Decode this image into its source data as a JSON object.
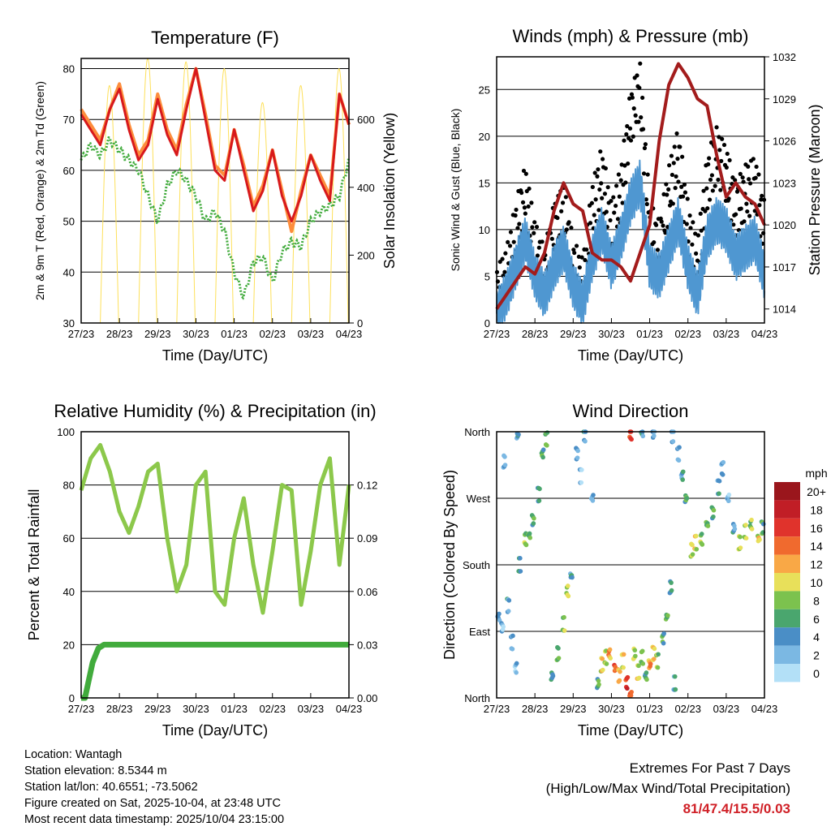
{
  "chart_data": [
    {
      "type": "line",
      "title": "Temperature (F)",
      "xlabel": "Time (Day/UTC)",
      "ylabel": "2m & 9m T (Red, Orange) & 2m Td (Green)",
      "ylabel_right": "Solar Insolation (Yellow)",
      "xticks": [
        "27/23",
        "28/23",
        "29/23",
        "30/23",
        "01/23",
        "02/23",
        "03/23",
        "04/23"
      ],
      "xlim": [
        0,
        7
      ],
      "ylim": [
        30,
        82
      ],
      "yticks": [
        30,
        40,
        50,
        60,
        70,
        80
      ],
      "ylim_right": [
        0,
        780
      ],
      "yticks_right": [
        0,
        200,
        400,
        600
      ],
      "series": [
        {
          "name": "2m T",
          "color": "#d7191c",
          "values": [
            71,
            68,
            65,
            72,
            76,
            68,
            62,
            65,
            74,
            67,
            63,
            72,
            80,
            70,
            60,
            58,
            68,
            60,
            52,
            56,
            64,
            55,
            50,
            55,
            63,
            58,
            54,
            75,
            69
          ]
        },
        {
          "name": "9m T",
          "color": "#fd8d3c",
          "values": [
            72,
            69,
            66,
            72,
            77,
            69,
            63,
            66,
            75,
            68,
            64,
            73,
            80,
            71,
            61,
            59,
            68,
            61,
            53,
            57,
            64,
            56,
            48,
            56,
            63,
            59,
            55,
            75,
            69
          ]
        },
        {
          "name": "2m Td",
          "color": "#41ab3c",
          "values": [
            62,
            65,
            63,
            66,
            64,
            62,
            60,
            55,
            50,
            57,
            60,
            58,
            55,
            50,
            52,
            48,
            40,
            35,
            42,
            43,
            38,
            44,
            46,
            45,
            50,
            52,
            53,
            55,
            62
          ]
        },
        {
          "name": "Solar Insolation",
          "color": "#fde05a",
          "daily_peaks": [
            700,
            780,
            770,
            750,
            650,
            700,
            750
          ]
        }
      ]
    },
    {
      "type": "line",
      "title": "Winds (mph) & Pressure (mb)",
      "xlabel": "Time (Day/UTC)",
      "ylabel": "Sonic Wind & Gust (Blue, Black)",
      "ylabel_right": "Station Pressure (Maroon)",
      "xticks": [
        "27/23",
        "28/23",
        "29/23",
        "30/23",
        "01/23",
        "02/23",
        "03/23",
        "04/23"
      ],
      "xlim": [
        0,
        7
      ],
      "ylim": [
        0,
        28.5
      ],
      "yticks": [
        0,
        5,
        10,
        15,
        20,
        25
      ],
      "ylim_right": [
        1013,
        1032
      ],
      "yticks_right": [
        1014,
        1017,
        1020,
        1023,
        1026,
        1029,
        1032
      ],
      "series": [
        {
          "name": "Gust",
          "color": "#000000",
          "values": [
            3,
            5,
            10,
            14,
            8,
            5,
            10,
            12,
            6,
            4,
            12,
            16,
            10,
            14,
            22,
            25,
            10,
            8,
            14,
            18,
            10,
            6,
            15,
            18,
            16,
            12,
            14,
            15,
            10
          ]
        },
        {
          "name": "Sonic Wind",
          "color": "#4f97d1",
          "values": [
            1,
            3,
            6,
            9,
            5,
            3,
            6,
            8,
            4,
            2,
            7,
            10,
            6,
            9,
            13,
            15,
            6,
            5,
            8,
            11,
            6,
            3,
            9,
            11,
            10,
            7,
            8,
            9,
            5
          ]
        },
        {
          "name": "Station Pressure",
          "color": "#a31c1c",
          "values": [
            1014,
            1015,
            1016,
            1017,
            1016.5,
            1018,
            1021,
            1023,
            1021.5,
            1021,
            1018,
            1017.5,
            1017.5,
            1017,
            1016,
            1018,
            1020,
            1026,
            1030,
            1031.5,
            1030.5,
            1029,
            1028.5,
            1025,
            1022,
            1023,
            1022,
            1021.5,
            1020
          ]
        }
      ]
    },
    {
      "type": "line",
      "title": "Relative Humidity (%) & Precipitation (in)",
      "xlabel": "Time (Day/UTC)",
      "ylabel": "Percent & Total Rainfall",
      "xticks": [
        "27/23",
        "28/23",
        "29/23",
        "30/23",
        "01/23",
        "02/23",
        "03/23",
        "04/23"
      ],
      "xlim": [
        0,
        7
      ],
      "ylim": [
        0,
        100
      ],
      "yticks": [
        0,
        20,
        40,
        60,
        80,
        100
      ],
      "ylim_right": [
        0,
        0.15
      ],
      "yticks_right": [
        "0.00",
        "0.03",
        "0.06",
        "0.09",
        "0.12"
      ],
      "series": [
        {
          "name": "Relative Humidity",
          "color": "#8cc84b",
          "values": [
            78,
            90,
            95,
            85,
            70,
            62,
            72,
            85,
            88,
            60,
            40,
            50,
            80,
            85,
            40,
            35,
            60,
            75,
            50,
            32,
            55,
            80,
            78,
            35,
            55,
            80,
            90,
            50,
            80
          ]
        },
        {
          "name": "Total Precipitation",
          "color": "#41ab3c",
          "x": [
            0,
            0.1,
            0.2,
            0.3,
            0.45,
            0.6,
            7
          ],
          "values": [
            0,
            0,
            0.01,
            0.02,
            0.028,
            0.03,
            0.03
          ]
        }
      ]
    },
    {
      "type": "scatter",
      "title": "Wind Direction",
      "xlabel": "Time (Day/UTC)",
      "ylabel": "Direction (Colored By Speed)",
      "xticks": [
        "27/23",
        "28/23",
        "29/23",
        "30/23",
        "01/23",
        "02/23",
        "03/23",
        "04/23"
      ],
      "xlim": [
        0,
        7
      ],
      "ylim": [
        0,
        360
      ],
      "yticks": [
        "North",
        "East",
        "South",
        "West",
        "North"
      ],
      "colorbar": {
        "title": "mph",
        "labels": [
          "0",
          "2",
          "4",
          "6",
          "8",
          "10",
          "12",
          "14",
          "16",
          "18",
          "20+"
        ],
        "colors": [
          "#b3e0f7",
          "#7bb8e3",
          "#4a8ec6",
          "#4aa66e",
          "#7cc24e",
          "#e8e05a",
          "#f9a846",
          "#f06a2e",
          "#e0332c",
          "#c11e26",
          "#9a161c"
        ]
      },
      "points": [
        [
          0.05,
          110,
          3
        ],
        [
          0.15,
          95,
          2
        ],
        [
          0.3,
          125,
          4
        ],
        [
          0.4,
          75,
          3
        ],
        [
          0.5,
          40,
          2
        ],
        [
          0.55,
          355,
          4
        ],
        [
          0.2,
          320,
          2
        ],
        [
          0.6,
          180,
          5
        ],
        [
          0.75,
          215,
          8
        ],
        [
          0.85,
          220,
          7
        ],
        [
          0.95,
          240,
          6
        ],
        [
          1.1,
          275,
          5
        ],
        [
          1.3,
          350,
          7
        ],
        [
          1.2,
          330,
          6
        ],
        [
          1.45,
          30,
          5
        ],
        [
          1.6,
          60,
          7
        ],
        [
          1.75,
          100,
          8
        ],
        [
          1.85,
          145,
          9
        ],
        [
          1.95,
          165,
          4
        ],
        [
          2.1,
          330,
          3
        ],
        [
          2.2,
          300,
          2
        ],
        [
          2.3,
          355,
          4
        ],
        [
          2.5,
          270,
          3
        ],
        [
          2.65,
          20,
          6
        ],
        [
          2.75,
          45,
          10
        ],
        [
          2.85,
          55,
          8
        ],
        [
          2.95,
          60,
          12
        ],
        [
          3.1,
          40,
          14
        ],
        [
          3.2,
          30,
          12
        ],
        [
          3.3,
          50,
          10
        ],
        [
          3.4,
          20,
          16
        ],
        [
          3.5,
          5,
          14
        ],
        [
          3.6,
          60,
          9
        ],
        [
          3.7,
          35,
          10
        ],
        [
          3.8,
          55,
          8
        ],
        [
          3.9,
          30,
          6
        ],
        [
          4.0,
          45,
          12
        ],
        [
          4.1,
          60,
          10
        ],
        [
          4.2,
          50,
          8
        ],
        [
          4.35,
          80,
          6
        ],
        [
          4.45,
          110,
          7
        ],
        [
          4.55,
          150,
          5
        ],
        [
          4.65,
          20,
          4
        ],
        [
          3.5,
          358,
          15
        ],
        [
          3.8,
          358,
          4
        ],
        [
          4.1,
          358,
          3
        ],
        [
          4.6,
          355,
          3
        ],
        [
          4.75,
          330,
          3
        ],
        [
          4.85,
          300,
          4
        ],
        [
          4.95,
          270,
          6
        ],
        [
          5.1,
          200,
          9
        ],
        [
          5.2,
          210,
          10
        ],
        [
          5.35,
          215,
          8
        ],
        [
          5.5,
          235,
          7
        ],
        [
          5.65,
          250,
          6
        ],
        [
          5.8,
          285,
          4
        ],
        [
          5.9,
          310,
          3
        ],
        [
          6.05,
          270,
          2
        ],
        [
          6.2,
          230,
          4
        ],
        [
          6.35,
          210,
          10
        ],
        [
          6.5,
          225,
          9
        ],
        [
          6.65,
          235,
          8
        ],
        [
          6.85,
          215,
          10
        ],
        [
          6.95,
          230,
          6
        ]
      ]
    }
  ],
  "info": {
    "location": "Location: Wantagh",
    "elevation": "Station elevation: 8.5344 m",
    "latlon": "Station lat/lon: 40.6551; -73.5062",
    "created": "Figure created on Sat, 2025-10-04, at 23:48 UTC",
    "timestamp": "Most recent data timestamp: 2025/10/04 23:15:00"
  },
  "extremes": {
    "title": "Extremes For Past 7 Days",
    "subtitle": "(High/Low/Max Wind/Total Precipitation)",
    "values": "81/47.4/15.5/0.03",
    "color": "#d02027"
  }
}
